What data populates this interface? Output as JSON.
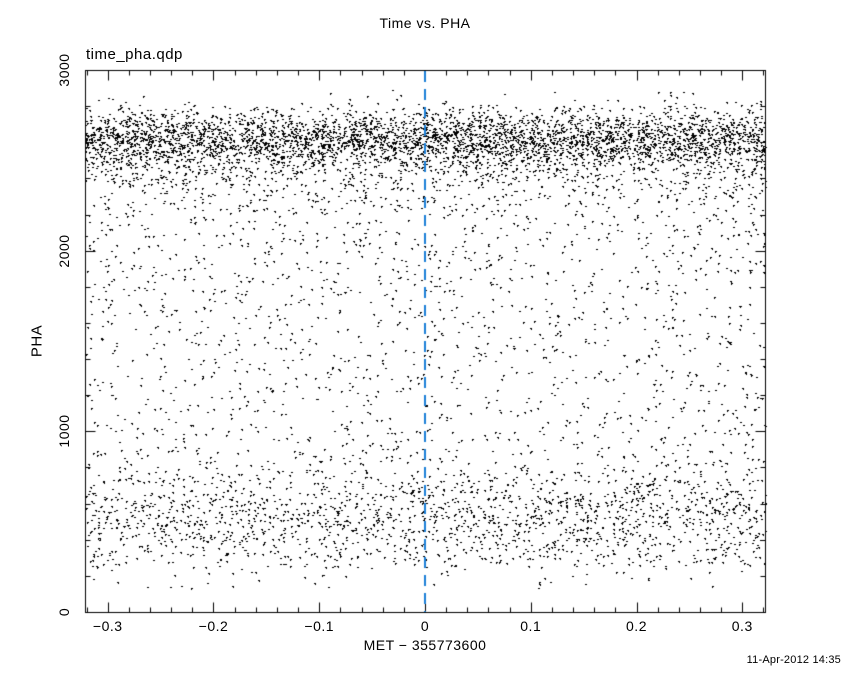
{
  "page": {
    "background": "#ffffff",
    "timestamp": "11-Apr-2012 14:35"
  },
  "chart_data": {
    "type": "scatter",
    "title": "Time vs. PHA",
    "top_left_label": "time_pha.qdp",
    "xlabel": "MET − 355773600",
    "ylabel": "PHA",
    "xlim": [
      -0.3215,
      0.3215
    ],
    "ylim": [
      0,
      3000
    ],
    "x_major_ticks": [
      -0.3,
      -0.2,
      -0.1,
      0,
      0.1,
      0.2,
      0.3
    ],
    "x_tick_labels": [
      "−0.3",
      "−0.2",
      "−0.1",
      "0",
      "0.1",
      "0.2",
      "0.3"
    ],
    "x_minor_step": 0.02,
    "y_major_ticks": [
      0,
      1000,
      2000,
      3000
    ],
    "y_tick_labels": [
      "0",
      "1000",
      "2000",
      "3000"
    ],
    "y_minor_step": 200,
    "grid": false,
    "legend": null,
    "frame_color": "#000000",
    "point_color": "#000000",
    "marker": "dot-1px",
    "vline": {
      "x": 0,
      "color": "#1b7fd8",
      "style": "dashed",
      "dash": [
        11,
        7
      ],
      "width": 2
    },
    "scatter_distribution": {
      "seed": 20120411,
      "x": "uniform over xlim",
      "total_points": 8060,
      "components": [
        {
          "kind": "gaussian",
          "label": "upper dense band",
          "y_mean": 2620,
          "y_std": 85,
          "y_clip": [
            2300,
            2950
          ],
          "count": 3900
        },
        {
          "kind": "gaussian",
          "label": "upper band lower tail",
          "y_mean": 2450,
          "y_std": 170,
          "y_clip": [
            2000,
            2620
          ],
          "count": 700
        },
        {
          "kind": "uniform",
          "label": "sparse mid scatter",
          "y_range": [
            260,
            2450
          ],
          "count": 2100
        },
        {
          "kind": "gaussian",
          "label": "lower band",
          "y_mean": 530,
          "y_std": 150,
          "y_clip": [
            240,
            980
          ],
          "count": 1300
        },
        {
          "kind": "uniform",
          "label": "stray low points",
          "y_range": [
            130,
            280
          ],
          "count": 60
        }
      ]
    }
  }
}
